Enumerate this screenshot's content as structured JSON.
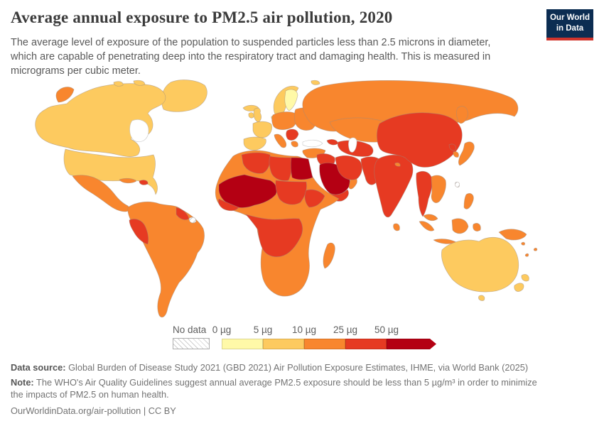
{
  "header": {
    "title": "Average annual exposure to PM2.5 air pollution, 2020",
    "subtitle": "The average level of exposure of the population to suspended particles less than 2.5 microns in diameter, which are capable of penetrating deep into the respiratory tract and damaging health. This is measured in micrograms per cubic meter.",
    "logo": {
      "line1": "Our World",
      "line2": "in Data",
      "bg_color": "#0C2D52",
      "accent_color": "#D0342C"
    }
  },
  "legend": {
    "no_data_label": "No data",
    "ticks": [
      "0 µg",
      "5 µg",
      "10 µg",
      "25 µg",
      "50 µg"
    ],
    "colors": [
      "#FFF9A8",
      "#FDCA5F",
      "#F8862E",
      "#E63A22",
      "#B40013"
    ]
  },
  "chart_data": {
    "type": "choropleth-map",
    "title": "Average annual exposure to PM2.5 air pollution, 2020",
    "unit": "micrograms per cubic meter",
    "bins": [
      "0-5 µg",
      "5-10 µg",
      "10-25 µg",
      "25-50 µg",
      "50+ µg",
      "No data"
    ],
    "bin_colors": [
      "#FFF9A8",
      "#FDCA5F",
      "#F8862E",
      "#E63A22",
      "#B40013",
      "hatched"
    ]
  },
  "map": {
    "regions": [
      {
        "id": "greenland",
        "bucket": 1
      },
      {
        "id": "canada-alaska",
        "bucket": 1
      },
      {
        "id": "arctic-islands",
        "bucket": 1
      },
      {
        "id": "usa",
        "bucket": 1
      },
      {
        "id": "chukotka",
        "bucket": 2
      },
      {
        "id": "mexico-central-america",
        "bucket": 2
      },
      {
        "id": "cuba",
        "bucket": 2
      },
      {
        "id": "hispaniola",
        "bucket": 3
      },
      {
        "id": "trinidad",
        "bucket": 3
      },
      {
        "id": "south-america",
        "bucket": 2
      },
      {
        "id": "peru",
        "bucket": 3
      },
      {
        "id": "guyanas",
        "bucket": 3
      },
      {
        "id": "french-guiana",
        "bucket": "nodata"
      },
      {
        "id": "iceland",
        "bucket": 1
      },
      {
        "id": "british-isles",
        "bucket": 1
      },
      {
        "id": "norway-sweden",
        "bucket": 1
      },
      {
        "id": "finland",
        "bucket": 0
      },
      {
        "id": "denmark",
        "bucket": 1
      },
      {
        "id": "france",
        "bucket": 1
      },
      {
        "id": "iberia",
        "bucket": 1
      },
      {
        "id": "central-europe",
        "bucket": 2
      },
      {
        "id": "italy",
        "bucket": 2
      },
      {
        "id": "east-europe",
        "bucket": 2
      },
      {
        "id": "balkans",
        "bucket": 3
      },
      {
        "id": "greece",
        "bucket": 2
      },
      {
        "id": "russia",
        "bucket": 2
      },
      {
        "id": "kamchatka",
        "bucket": 2
      },
      {
        "id": "svalbard",
        "bucket": 1
      },
      {
        "id": "kazakhstan",
        "bucket": 2
      },
      {
        "id": "central-asia",
        "bucket": 3
      },
      {
        "id": "caucasus",
        "bucket": 3
      },
      {
        "id": "turkey",
        "bucket": 2
      },
      {
        "id": "iraq-syria",
        "bucket": 3
      },
      {
        "id": "saudi-arabia",
        "bucket": 4
      },
      {
        "id": "yemen",
        "bucket": 3
      },
      {
        "id": "oman",
        "bucket": 2
      },
      {
        "id": "iran",
        "bucket": 3
      },
      {
        "id": "afghanistan-pakistan",
        "bucket": 3
      },
      {
        "id": "india",
        "bucket": 3
      },
      {
        "id": "sri-lanka",
        "bucket": 2
      },
      {
        "id": "china-mongolia",
        "bucket": 3
      },
      {
        "id": "bhutan",
        "bucket": 2
      },
      {
        "id": "north-korea",
        "bucket": 3
      },
      {
        "id": "south-korea",
        "bucket": 2
      },
      {
        "id": "japan",
        "bucket": 2
      },
      {
        "id": "myanmar-thailand",
        "bucket": 3
      },
      {
        "id": "indochina",
        "bucket": 2
      },
      {
        "id": "malaysia",
        "bucket": 2
      },
      {
        "id": "indonesia",
        "bucket": 2
      },
      {
        "id": "philippines",
        "bucket": 2
      },
      {
        "id": "taiwan",
        "bucket": "nodata"
      },
      {
        "id": "new-guinea",
        "bucket": 2
      },
      {
        "id": "pacific-islands",
        "bucket": 2
      },
      {
        "id": "australia",
        "bucket": 1
      },
      {
        "id": "tasmania",
        "bucket": 1
      },
      {
        "id": "new-zealand",
        "bucket": 1
      },
      {
        "id": "africa-base",
        "bucket": 2
      },
      {
        "id": "algeria-tunisia",
        "bucket": 3
      },
      {
        "id": "libya",
        "bucket": 3
      },
      {
        "id": "egypt",
        "bucket": 4
      },
      {
        "id": "sahel-west-africa",
        "bucket": 4
      },
      {
        "id": "guinea-coast",
        "bucket": 3
      },
      {
        "id": "chad-sudan",
        "bucket": 3
      },
      {
        "id": "ethiopia",
        "bucket": 3
      },
      {
        "id": "central-africa",
        "bucket": 3
      },
      {
        "id": "madagascar",
        "bucket": 2
      }
    ]
  },
  "footer": {
    "data_source_label": "Data source:",
    "data_source_text": " Global Burden of Disease Study 2021 (GBD 2021) Air Pollution Exposure Estimates, IHME, via World Bank (2025)",
    "note_label": "Note:",
    "note_text": " The WHO's Air Quality Guidelines suggest annual average PM2.5 exposure should be less than 5 µg/m³ in order to minimize the impacts of PM2.5 on human health.",
    "url": "OurWorldinData.org/air-pollution",
    "separator": " | ",
    "license": "CC BY"
  }
}
